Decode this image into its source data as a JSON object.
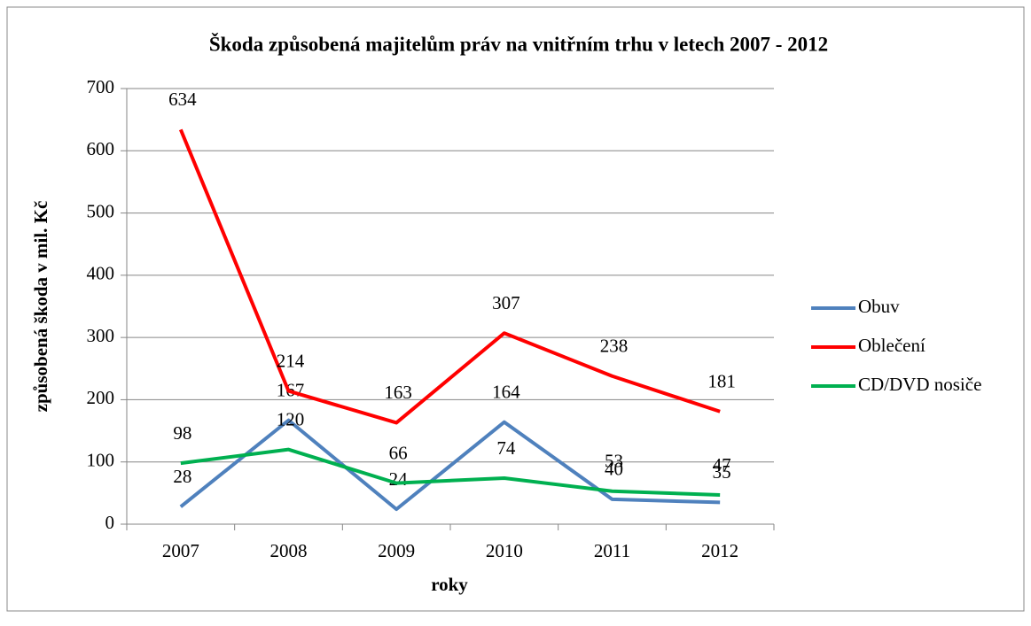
{
  "chart_data": {
    "type": "line",
    "title": "Škoda způsobená majitelům práv na vnitřním trhu v letech 2007 - 2012",
    "x_label": "roky",
    "y_label": "způsobená škoda v mil. Kč",
    "categories": [
      "2007",
      "2008",
      "2009",
      "2010",
      "2011",
      "2012"
    ],
    "series": [
      {
        "name": "Obuv",
        "color": "#4f81bd",
        "values": [
          28,
          167,
          24,
          164,
          40,
          35
        ]
      },
      {
        "name": "Oblečení",
        "color": "#ff0000",
        "values": [
          634,
          214,
          163,
          307,
          238,
          181
        ]
      },
      {
        "name": "CD/DVD nosiče",
        "color": "#00b050",
        "values": [
          98,
          120,
          66,
          74,
          53,
          47
        ]
      }
    ],
    "ylim": [
      0,
      700
    ],
    "yticks": [
      0,
      100,
      200,
      300,
      400,
      500,
      600,
      700
    ],
    "grid": true,
    "legend": "right"
  }
}
